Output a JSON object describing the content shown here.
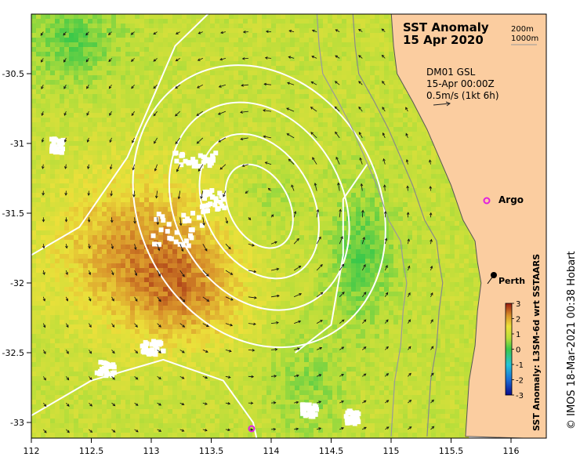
{
  "title": "SST Anomaly",
  "date": "15 Apr 2020",
  "depth_labels": [
    "200m",
    "1000m"
  ],
  "model_name": "DM01 GSL",
  "model_time": "15-Apr 00:00Z",
  "vector_scale": "0.5m/s (1kt 6h)",
  "places": [
    {
      "name": "Argo",
      "lon": 115.85,
      "lat": -31.5,
      "marker": "magenta-ring"
    },
    {
      "name": "Perth",
      "lon": 115.86,
      "lat": -31.95,
      "marker": "black-dot"
    }
  ],
  "argo_float_offshore": {
    "lon": 113.84,
    "lat": -33.04
  },
  "colorbar": {
    "label": "SST Anomaly: L3SM-6d wrt SSTAARS",
    "ticks": [
      "3",
      "2",
      "1",
      "0",
      "-1",
      "-2",
      "-3"
    ],
    "min": -3,
    "max": 3
  },
  "credit": "© IMOS 18-Mar-2021 00:38 Hobart",
  "x_ticks": [
    "112",
    "112.5",
    "113",
    "113.5",
    "114",
    "114.5",
    "115",
    "115.5",
    "116"
  ],
  "y_ticks": [
    "-30.5",
    "-31",
    "-31.5",
    "-32",
    "-32.5",
    "-33"
  ],
  "chart_data": {
    "type": "map",
    "title": "SST Anomaly 15 Apr 2020",
    "xlim": [
      112,
      116.3
    ],
    "ylim": [
      -33.1,
      -30.05
    ],
    "x_ticks": [
      112,
      112.5,
      113,
      113.5,
      114,
      114.5,
      115,
      115.5,
      116
    ],
    "y_ticks": [
      -30.5,
      -31,
      -31.5,
      -32,
      -32.5,
      -33
    ],
    "colorbar_range": [
      -3,
      3
    ],
    "warm_core_eddy_center": {
      "lon": 113.9,
      "lat": -31.45
    },
    "coastline": [
      [
        115.0,
        -30.05
      ],
      [
        115.02,
        -30.3
      ],
      [
        115.05,
        -30.5
      ],
      [
        115.18,
        -30.7
      ],
      [
        115.3,
        -30.9
      ],
      [
        115.4,
        -31.1
      ],
      [
        115.5,
        -31.3
      ],
      [
        115.6,
        -31.55
      ],
      [
        115.7,
        -31.7
      ],
      [
        115.72,
        -31.85
      ],
      [
        115.75,
        -32.0
      ],
      [
        115.72,
        -32.2
      ],
      [
        115.7,
        -32.45
      ],
      [
        115.65,
        -32.7
      ],
      [
        115.62,
        -33.1
      ]
    ]
  }
}
